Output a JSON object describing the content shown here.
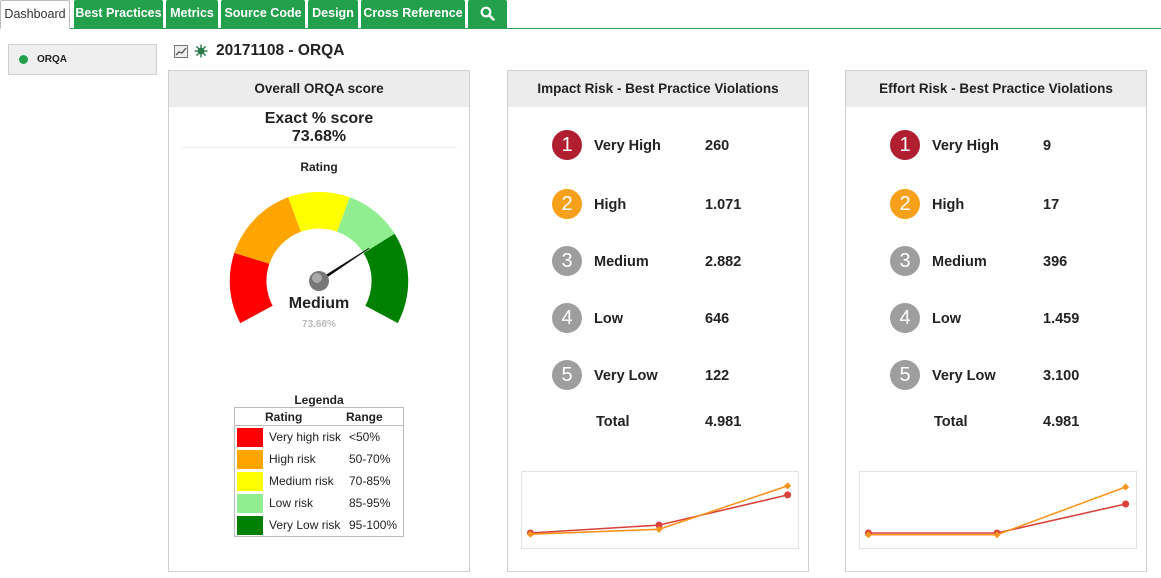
{
  "tabs": [
    {
      "label": "Dashboard"
    },
    {
      "label": "Best Practices"
    },
    {
      "label": "Metrics"
    },
    {
      "label": "Source Code"
    },
    {
      "label": "Design"
    },
    {
      "label": "Cross Reference"
    },
    {
      "icon": "search-icon"
    }
  ],
  "sidebar": {
    "items": [
      {
        "label": "ORQA",
        "status_color": "#22a04b"
      }
    ]
  },
  "page": {
    "title": "20171108 - ORQA"
  },
  "score_panel": {
    "title": "Overall ORQA score",
    "exact_label": "Exact % score",
    "exact_value": "73.68%",
    "rating_label": "Rating",
    "gauge": {
      "value_percent": 73.68,
      "rating": "Medium",
      "value_label": "73.68%"
    },
    "legend": {
      "title": "Legenda",
      "headers": [
        "Rating",
        "Range"
      ],
      "rows": [
        {
          "name": "Very high risk",
          "range": "<50%",
          "color": "#ff0000"
        },
        {
          "name": "High risk",
          "range": "50-70%",
          "color": "#ffa500"
        },
        {
          "name": "Medium risk",
          "range": "70-85%",
          "color": "#ffff00"
        },
        {
          "name": "Low risk",
          "range": "85-95%",
          "color": "#90ee90"
        },
        {
          "name": "Very Low risk",
          "range": "95-100%",
          "color": "#008000"
        }
      ]
    }
  },
  "impact_panel": {
    "title": "Impact Risk - Best Practice Violations",
    "rows": [
      {
        "num": "1",
        "name": "Very High",
        "value": "260",
        "color": "#b01e2f"
      },
      {
        "num": "2",
        "name": "High",
        "value": "1.071",
        "color": "#f7a11a"
      },
      {
        "num": "3",
        "name": "Medium",
        "value": "2.882",
        "color": "#9e9e9e"
      },
      {
        "num": "4",
        "name": "Low",
        "value": "646",
        "color": "#9e9e9e"
      },
      {
        "num": "5",
        "name": "Very Low",
        "value": "122",
        "color": "#9e9e9e"
      }
    ],
    "total_label": "Total",
    "total_value": "4.981"
  },
  "effort_panel": {
    "title": "Effort Risk - Best Practice Violations",
    "rows": [
      {
        "num": "1",
        "name": "Very High",
        "value": "9",
        "color": "#b01e2f"
      },
      {
        "num": "2",
        "name": "High",
        "value": "17",
        "color": "#f7a11a"
      },
      {
        "num": "3",
        "name": "Medium",
        "value": "396",
        "color": "#9e9e9e"
      },
      {
        "num": "4",
        "name": "Low",
        "value": "1.459",
        "color": "#9e9e9e"
      },
      {
        "num": "5",
        "name": "Very Low",
        "value": "3.100",
        "color": "#9e9e9e"
      }
    ],
    "total_label": "Total",
    "total_value": "4.981"
  },
  "colors": {
    "accent": "#22a04b",
    "series_red": "#d9413a",
    "series_orange": "#f7941d"
  },
  "chart_data": [
    {
      "type": "line",
      "x": [
        1,
        2,
        3
      ],
      "ylim": [
        0,
        1
      ],
      "series": [
        {
          "color": "#d9413a",
          "values": [
            0.12,
            0.25,
            0.75
          ]
        },
        {
          "color": "#f7941d",
          "values": [
            0.1,
            0.18,
            0.9
          ]
        }
      ]
    },
    {
      "type": "line",
      "x": [
        1,
        2,
        3
      ],
      "ylim": [
        0,
        1
      ],
      "series": [
        {
          "color": "#d9413a",
          "values": [
            0.12,
            0.12,
            0.6
          ]
        },
        {
          "color": "#f7941d",
          "values": [
            0.09,
            0.09,
            0.88
          ]
        }
      ]
    }
  ]
}
